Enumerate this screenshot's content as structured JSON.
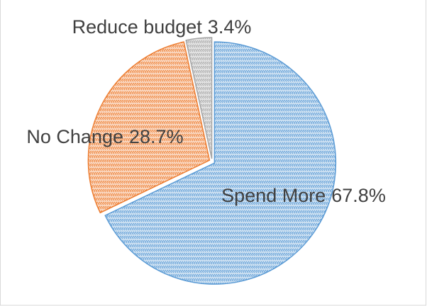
{
  "chart_data": {
    "type": "pie",
    "categories": [
      "Spend More",
      "No Change",
      "Reduce budget"
    ],
    "values": [
      67.8,
      28.7,
      3.4
    ],
    "value_labels": [
      "67.8%",
      "28.7%",
      "3.4%"
    ],
    "colors": [
      "#5b9bd5",
      "#ed7d31",
      "#a5a5a5"
    ]
  }
}
